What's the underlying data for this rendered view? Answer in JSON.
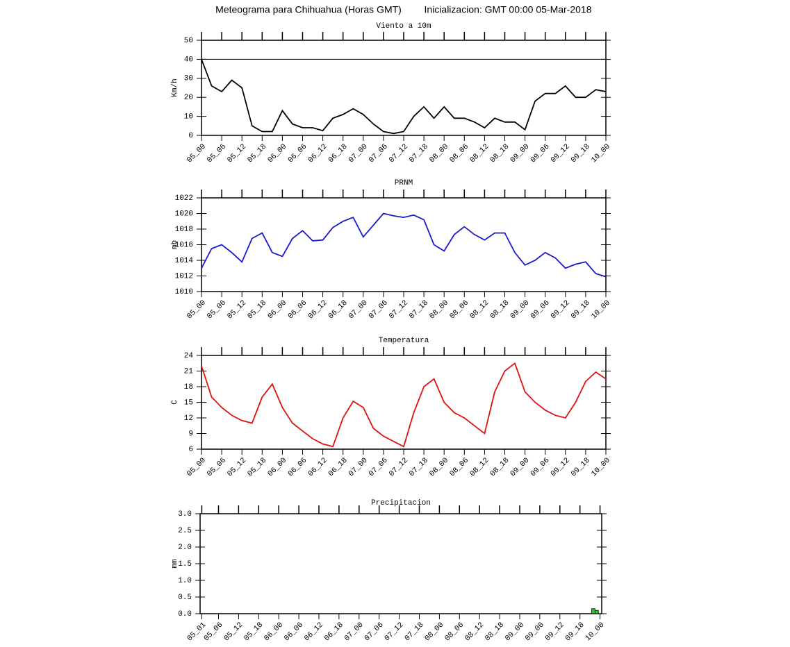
{
  "title": "Meteograma para Chihuahua (Horas GMT)",
  "subtitle": "Inicializacion: GMT 00:00 05-Mar-2018",
  "chart_data": [
    {
      "type": "line",
      "title": "Viento a 10m",
      "ylabel": "Km/h",
      "color": "#000000",
      "hline": 40,
      "categories": [
        "05_00",
        null,
        "05_06",
        null,
        "05_12",
        null,
        "05_18",
        null,
        "06_00",
        null,
        "06_06",
        null,
        "06_12",
        null,
        "06_18",
        null,
        "07_00",
        null,
        "07_06",
        null,
        "07_12",
        null,
        "07_18",
        null,
        "08_00",
        null,
        "08_06",
        null,
        "08_12",
        null,
        "08_18",
        null,
        "09_00",
        null,
        "09_06",
        null,
        "09_12",
        null,
        "09_18",
        null,
        "10_00"
      ],
      "values": [
        40,
        26,
        23,
        29,
        25,
        5,
        2,
        2,
        13,
        6,
        4,
        4,
        2.5,
        9,
        11,
        14,
        11,
        6,
        2,
        1,
        2,
        10,
        15,
        9,
        15,
        9,
        9,
        7,
        4,
        9,
        7,
        7,
        3,
        18,
        22,
        22,
        26,
        20,
        20,
        24,
        23
      ],
      "ylim": [
        0,
        50
      ],
      "yticks": [
        0,
        10,
        20,
        30,
        40,
        50
      ]
    },
    {
      "type": "line",
      "title": "PRNM",
      "ylabel": "mb",
      "color": "#1a1acc",
      "categories": [
        "05_00",
        null,
        "05_06",
        null,
        "05_12",
        null,
        "05_18",
        null,
        "06_00",
        null,
        "06_06",
        null,
        "06_12",
        null,
        "06_18",
        null,
        "07_00",
        null,
        "07_06",
        null,
        "07_12",
        null,
        "07_18",
        null,
        "08_00",
        null,
        "08_06",
        null,
        "08_12",
        null,
        "08_18",
        null,
        "09_00",
        null,
        "09_06",
        null,
        "09_12",
        null,
        "09_18",
        null,
        "10_00"
      ],
      "values": [
        1013,
        1015.5,
        1016,
        1015,
        1013.8,
        1016.8,
        1017.5,
        1015,
        1014.5,
        1016.8,
        1017.8,
        1016.5,
        1016.6,
        1018.2,
        1019,
        1019.5,
        1017,
        1018.5,
        1020,
        1019.7,
        1019.5,
        1019.8,
        1019.2,
        1016,
        1015.2,
        1017.3,
        1018.3,
        1017.3,
        1016.6,
        1017.5,
        1017.5,
        1015,
        1013.4,
        1014,
        1015,
        1014.3,
        1013,
        1013.5,
        1013.8,
        1012.3,
        1011.9
      ],
      "ylim": [
        1010,
        1022
      ],
      "yticks": [
        1010,
        1012,
        1014,
        1016,
        1018,
        1020,
        1022
      ]
    },
    {
      "type": "line",
      "title": "Temperatura",
      "ylabel": "C",
      "color": "#dd1111",
      "categories": [
        "05_00",
        null,
        "05_06",
        null,
        "05_12",
        null,
        "05_18",
        null,
        "06_00",
        null,
        "06_06",
        null,
        "06_12",
        null,
        "06_18",
        null,
        "07_00",
        null,
        "07_06",
        null,
        "07_12",
        null,
        "07_18",
        null,
        "08_00",
        null,
        "08_06",
        null,
        "08_12",
        null,
        "08_18",
        null,
        "09_00",
        null,
        "09_06",
        null,
        "09_12",
        null,
        "09_18",
        null,
        "10_00"
      ],
      "values": [
        22,
        16,
        14,
        12.5,
        11.5,
        11,
        16,
        18.5,
        14,
        11,
        9.5,
        8,
        7,
        6.5,
        12,
        15.2,
        14,
        10,
        8.5,
        7.5,
        6.5,
        13,
        18,
        19.5,
        15,
        13,
        12,
        10.5,
        9,
        17,
        21,
        22.5,
        17,
        15,
        13.5,
        12.5,
        12,
        15,
        19,
        20.8,
        19.5
      ],
      "ylim": [
        6,
        24
      ],
      "yticks": [
        6,
        9,
        12,
        15,
        18,
        21,
        24
      ]
    },
    {
      "type": "bar",
      "title": "Precipitacion",
      "ylabel": "mm",
      "color": "#22cc22",
      "categories": [
        "05_01",
        null,
        null,
        null,
        null,
        "05_06",
        null,
        null,
        null,
        null,
        null,
        "05_12",
        null,
        null,
        null,
        null,
        null,
        "05_18",
        null,
        null,
        null,
        null,
        null,
        "06_00",
        null,
        null,
        null,
        null,
        null,
        "06_06",
        null,
        null,
        null,
        null,
        null,
        "06_12",
        null,
        null,
        null,
        null,
        null,
        "06_18",
        null,
        null,
        null,
        null,
        null,
        "07_00",
        null,
        null,
        null,
        null,
        null,
        "07_06",
        null,
        null,
        null,
        null,
        null,
        "07_12",
        null,
        null,
        null,
        null,
        null,
        "07_18",
        null,
        null,
        null,
        null,
        null,
        "08_00",
        null,
        null,
        null,
        null,
        null,
        "08_06",
        null,
        null,
        null,
        null,
        null,
        "08_12",
        null,
        null,
        null,
        null,
        null,
        "08_18",
        null,
        null,
        null,
        null,
        null,
        "09_00",
        null,
        null,
        null,
        null,
        null,
        "09_06",
        null,
        null,
        null,
        null,
        null,
        "09_12",
        null,
        null,
        null,
        null,
        null,
        "09_18",
        null,
        null,
        null,
        null,
        null,
        "10_00"
      ],
      "values": [
        0,
        0,
        0,
        0,
        0,
        0,
        0,
        0,
        0,
        0,
        0,
        0,
        0,
        0,
        0,
        0,
        0,
        0,
        0,
        0,
        0,
        0,
        0,
        0,
        0,
        0,
        0,
        0,
        0,
        0,
        0,
        0,
        0,
        0,
        0,
        0,
        0,
        0,
        0,
        0,
        0,
        0,
        0,
        0,
        0,
        0,
        0,
        0,
        0,
        0,
        0,
        0,
        0,
        0,
        0,
        0,
        0,
        0,
        0,
        0,
        0,
        0,
        0,
        0,
        0,
        0,
        0,
        0,
        0,
        0,
        0,
        0,
        0,
        0,
        0,
        0,
        0,
        0,
        0,
        0,
        0,
        0,
        0,
        0,
        0,
        0,
        0,
        0,
        0,
        0,
        0,
        0,
        0,
        0,
        0,
        0,
        0,
        0,
        0,
        0,
        0,
        0,
        0,
        0,
        0,
        0,
        0,
        0,
        0,
        0,
        0,
        0,
        0,
        0,
        0,
        0,
        0,
        0.15,
        0.1,
        0
      ],
      "ylim": [
        0,
        3
      ],
      "yticks": [
        {
          "value": 0,
          "label": "0.0"
        },
        {
          "value": 0.5,
          "label": "0.5"
        },
        {
          "value": 1,
          "label": "1.0"
        },
        {
          "value": 1.5,
          "label": "1.5"
        },
        {
          "value": 2,
          "label": "2.0"
        },
        {
          "value": 2.5,
          "label": "2.5"
        },
        {
          "value": 3,
          "label": "3.0"
        }
      ]
    }
  ]
}
